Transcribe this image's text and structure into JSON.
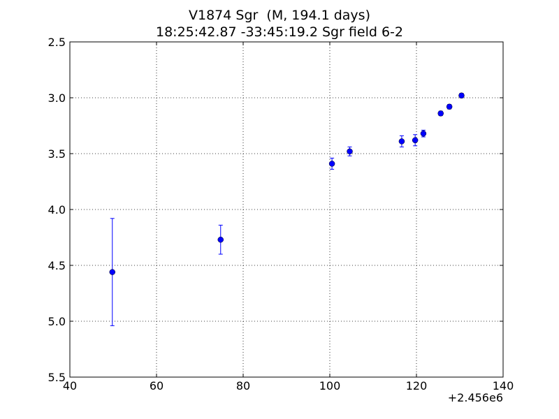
{
  "chart_data": {
    "type": "scatter",
    "title": "V1874 Sgr  (M, 194.1 days)",
    "subtitle": "18:25:42.87 -33:45:19.2 Sgr field 6-2",
    "x_offset_label": "+2.456e6",
    "xlim": [
      40,
      140
    ],
    "ylim": [
      2.5,
      5.5
    ],
    "y_inverted": true,
    "xticks": [
      "40",
      "60",
      "80",
      "100",
      "120",
      "140"
    ],
    "yticks": [
      "2.5",
      "3.0",
      "3.5",
      "4.0",
      "4.5",
      "5.0",
      "5.5"
    ],
    "grid": true,
    "marker_color": "#0000ff",
    "points": [
      {
        "x": 49.8,
        "y": 4.56,
        "err": 0.48
      },
      {
        "x": 74.8,
        "y": 4.27,
        "err": 0.13
      },
      {
        "x": 100.5,
        "y": 3.59,
        "err": 0.05
      },
      {
        "x": 104.6,
        "y": 3.48,
        "err": 0.04
      },
      {
        "x": 116.6,
        "y": 3.39,
        "err": 0.05
      },
      {
        "x": 119.7,
        "y": 3.38,
        "err": 0.05
      },
      {
        "x": 121.6,
        "y": 3.32,
        "err": 0.03
      },
      {
        "x": 125.6,
        "y": 3.14,
        "err": 0.02
      },
      {
        "x": 127.6,
        "y": 3.08,
        "err": 0.02
      },
      {
        "x": 130.4,
        "y": 2.98,
        "err": 0.02
      }
    ]
  }
}
